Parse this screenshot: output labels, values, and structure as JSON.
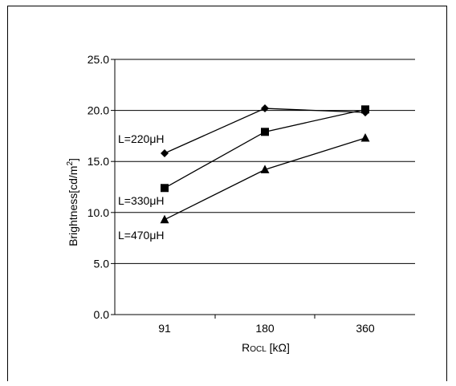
{
  "chart_data": {
    "type": "line",
    "title": "",
    "categories": [
      "91",
      "180",
      "360"
    ],
    "xlabel": {
      "main": "R",
      "sub": "OCL",
      "unit": " [kΩ]"
    },
    "ylabel": {
      "base": "Brightness[cd/m",
      "sup": "2",
      "close": "]"
    },
    "ylim": [
      0,
      25
    ],
    "yticks": [
      "0.0",
      "5.0",
      "10.0",
      "15.0",
      "20.0",
      "25.0"
    ],
    "grid": "horizontal",
    "legend": "inline labels",
    "series": [
      {
        "name": "L=220μH",
        "marker": "diamond",
        "values": [
          15.8,
          20.2,
          19.8
        ]
      },
      {
        "name": "L=330μH",
        "marker": "square",
        "values": [
          12.4,
          17.9,
          20.1
        ]
      },
      {
        "name": "L=470μH",
        "marker": "triangle",
        "values": [
          9.3,
          14.2,
          17.3
        ]
      }
    ],
    "colors": {
      "line": "#000000",
      "grid": "#000000"
    }
  }
}
